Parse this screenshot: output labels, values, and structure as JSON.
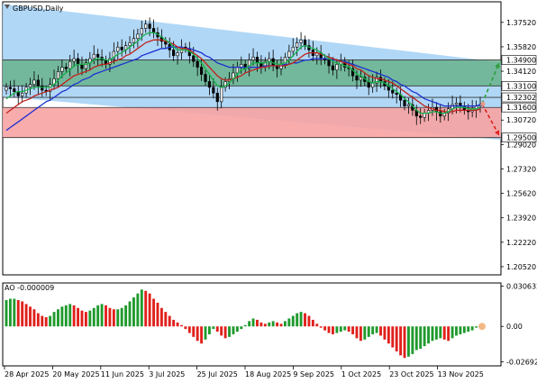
{
  "chart_data": {
    "type": "candlestick",
    "symbol_label": "GBPUSD,Daily",
    "price_axis": {
      "ticks": [
        "1.37520",
        "1.35820",
        "1.34120",
        "1.32420",
        "1.30720",
        "1.29020",
        "1.27320",
        "1.25620",
        "1.23920",
        "1.22220",
        "1.20520"
      ],
      "ylim": [
        1.1995,
        1.3895
      ]
    },
    "price_levels": [
      {
        "value": 1.349,
        "label": "1.34900",
        "color": "#2e8b57"
      },
      {
        "value": 1.331,
        "label": "1.33100",
        "color": "#2e8b57"
      },
      {
        "value": 1.323,
        "label": "1.32302",
        "color": "#4a90d9"
      },
      {
        "value": 1.316,
        "label": "1.31600",
        "color": "#cc3333"
      },
      {
        "value": 1.295,
        "label": "1.29500",
        "color": "#cc3333"
      }
    ],
    "zones": {
      "green_zone": [
        1.331,
        1.349
      ],
      "red_zone": [
        1.295,
        1.316
      ],
      "blue_channel": {
        "upper_start": 1.388,
        "upper_end": 1.3475,
        "lower_start": 1.3235,
        "lower_end": 1.2935
      }
    },
    "x_axis_labels": [
      "28 Apr 2025",
      "20 May 2025",
      "11 Jun 2025",
      "3 Jul 2025",
      "25 Jul 2025",
      "18 Aug 2025",
      "9 Sep 2025",
      "1 Oct 2025",
      "23 Oct 2025",
      "13 Nov 2025"
    ],
    "closes": [
      1.33,
      1.329,
      1.327,
      1.324,
      1.326,
      1.33,
      1.332,
      1.335,
      1.331,
      1.328,
      1.327,
      1.332,
      1.336,
      1.341,
      1.344,
      1.343,
      1.348,
      1.35,
      1.346,
      1.343,
      1.347,
      1.35,
      1.353,
      1.351,
      1.349,
      1.346,
      1.35,
      1.355,
      1.358,
      1.356,
      1.359,
      1.361,
      1.364,
      1.367,
      1.371,
      1.374,
      1.371,
      1.368,
      1.365,
      1.362,
      1.36,
      1.356,
      1.352,
      1.354,
      1.358,
      1.357,
      1.352,
      1.348,
      1.344,
      1.339,
      1.334,
      1.33,
      1.326,
      1.32,
      1.33,
      1.334,
      1.336,
      1.34,
      1.344,
      1.346,
      1.343,
      1.349,
      1.351,
      1.347,
      1.344,
      1.348,
      1.35,
      1.345,
      1.343,
      1.346,
      1.351,
      1.355,
      1.358,
      1.361,
      1.363,
      1.359,
      1.356,
      1.352,
      1.354,
      1.35,
      1.349,
      1.345,
      1.342,
      1.346,
      1.348,
      1.344,
      1.343,
      1.338,
      1.335,
      1.337,
      1.334,
      1.33,
      1.333,
      1.337,
      1.334,
      1.331,
      1.328,
      1.326,
      1.325,
      1.321,
      1.317,
      1.318,
      1.314,
      1.31,
      1.309,
      1.312,
      1.314,
      1.316,
      1.313,
      1.31,
      1.312,
      1.315,
      1.318,
      1.319,
      1.317,
      1.314,
      1.313,
      1.315,
      1.317,
      1.318
    ],
    "ma_fast": [
      1.322,
      1.324,
      1.326,
      1.327,
      1.327,
      1.328,
      1.329,
      1.33,
      1.33,
      1.33,
      1.33,
      1.33,
      1.332,
      1.335,
      1.338,
      1.34,
      1.342,
      1.345,
      1.346,
      1.346,
      1.346,
      1.347,
      1.349,
      1.35,
      1.35,
      1.349,
      1.349,
      1.351,
      1.353,
      1.354,
      1.356,
      1.358,
      1.36,
      1.362,
      1.365,
      1.367,
      1.368,
      1.368,
      1.367,
      1.365,
      1.363,
      1.361,
      1.358,
      1.356,
      1.356,
      1.356,
      1.355,
      1.353,
      1.35,
      1.347,
      1.343,
      1.339,
      1.335,
      1.331,
      1.33,
      1.331,
      1.333,
      1.336,
      1.339,
      1.342,
      1.343,
      1.345,
      1.347,
      1.347,
      1.347,
      1.347,
      1.348,
      1.347,
      1.346,
      1.346,
      1.347,
      1.349,
      1.352,
      1.355,
      1.358,
      1.359,
      1.358,
      1.357,
      1.356,
      1.354,
      1.352,
      1.35,
      1.348,
      1.347,
      1.346,
      1.345,
      1.344,
      1.342,
      1.339,
      1.338,
      1.336,
      1.334,
      1.333,
      1.334,
      1.334,
      1.333,
      1.331,
      1.329,
      1.327,
      1.325,
      1.322,
      1.32,
      1.317,
      1.314,
      1.312,
      1.312,
      1.312,
      1.313,
      1.313,
      1.312,
      1.312,
      1.313,
      1.315,
      1.316,
      1.316,
      1.316,
      1.315,
      1.315,
      1.315,
      1.316
    ],
    "ma_mid": [
      1.312,
      1.314,
      1.316,
      1.318,
      1.32,
      1.321,
      1.322,
      1.324,
      1.325,
      1.326,
      1.327,
      1.328,
      1.329,
      1.33,
      1.332,
      1.334,
      1.336,
      1.338,
      1.339,
      1.34,
      1.341,
      1.342,
      1.344,
      1.345,
      1.346,
      1.346,
      1.347,
      1.348,
      1.349,
      1.35,
      1.352,
      1.353,
      1.355,
      1.357,
      1.359,
      1.361,
      1.362,
      1.363,
      1.363,
      1.363,
      1.362,
      1.361,
      1.36,
      1.358,
      1.357,
      1.357,
      1.356,
      1.354,
      1.352,
      1.35,
      1.347,
      1.344,
      1.341,
      1.338,
      1.336,
      1.335,
      1.335,
      1.336,
      1.337,
      1.338,
      1.34,
      1.341,
      1.342,
      1.343,
      1.344,
      1.344,
      1.345,
      1.345,
      1.345,
      1.345,
      1.345,
      1.346,
      1.347,
      1.349,
      1.351,
      1.353,
      1.354,
      1.354,
      1.354,
      1.353,
      1.352,
      1.351,
      1.35,
      1.349,
      1.348,
      1.347,
      1.346,
      1.345,
      1.343,
      1.342,
      1.34,
      1.338,
      1.337,
      1.336,
      1.336,
      1.335,
      1.334,
      1.333,
      1.331,
      1.329,
      1.327,
      1.325,
      1.323,
      1.321,
      1.319,
      1.317,
      1.316,
      1.315,
      1.314,
      1.314,
      1.313,
      1.313,
      1.313,
      1.314,
      1.314,
      1.314,
      1.314,
      1.314,
      1.314,
      1.315
    ],
    "ma_slow": [
      1.3,
      1.302,
      1.304,
      1.306,
      1.308,
      1.31,
      1.312,
      1.314,
      1.316,
      1.318,
      1.32,
      1.321,
      1.323,
      1.325,
      1.327,
      1.328,
      1.33,
      1.332,
      1.333,
      1.335,
      1.336,
      1.337,
      1.339,
      1.34,
      1.341,
      1.342,
      1.343,
      1.344,
      1.345,
      1.346,
      1.347,
      1.348,
      1.349,
      1.35,
      1.352,
      1.353,
      1.354,
      1.355,
      1.356,
      1.357,
      1.357,
      1.358,
      1.358,
      1.358,
      1.358,
      1.357,
      1.357,
      1.356,
      1.355,
      1.354,
      1.352,
      1.351,
      1.349,
      1.347,
      1.346,
      1.345,
      1.344,
      1.344,
      1.344,
      1.344,
      1.344,
      1.344,
      1.344,
      1.344,
      1.344,
      1.345,
      1.345,
      1.345,
      1.345,
      1.345,
      1.346,
      1.346,
      1.347,
      1.347,
      1.348,
      1.349,
      1.349,
      1.35,
      1.35,
      1.35,
      1.35,
      1.35,
      1.349,
      1.349,
      1.348,
      1.348,
      1.347,
      1.346,
      1.345,
      1.344,
      1.343,
      1.342,
      1.341,
      1.34,
      1.339,
      1.338,
      1.337,
      1.335,
      1.334,
      1.332,
      1.331,
      1.329,
      1.327,
      1.326,
      1.324,
      1.322,
      1.321,
      1.32,
      1.319,
      1.318,
      1.317,
      1.317,
      1.317,
      1.317,
      1.317,
      1.317,
      1.317,
      1.317,
      1.317,
      1.318
    ],
    "forecast_arrows": [
      {
        "label": "up",
        "from": 1.3185,
        "to": 1.347,
        "color": "#2e9e3a"
      },
      {
        "label": "down",
        "from": 1.3185,
        "to": 1.2965,
        "color": "#e0201b"
      }
    ],
    "oscillator": {
      "name": "AO",
      "label": "AO -0.000009",
      "ticks": [
        "0.030632",
        "0.00",
        "-0.026929"
      ],
      "ylim": [
        -0.03,
        0.033
      ],
      "values": [
        0.02,
        0.021,
        0.021,
        0.02,
        0.019,
        0.017,
        0.015,
        0.013,
        0.01,
        0.008,
        0.007,
        0.008,
        0.011,
        0.013,
        0.015,
        0.016,
        0.017,
        0.016,
        0.014,
        0.012,
        0.011,
        0.012,
        0.014,
        0.016,
        0.017,
        0.016,
        0.014,
        0.013,
        0.013,
        0.014,
        0.016,
        0.019,
        0.022,
        0.025,
        0.028,
        0.027,
        0.025,
        0.021,
        0.018,
        0.014,
        0.011,
        0.008,
        0.005,
        0.003,
        0.001,
        -0.002,
        -0.005,
        -0.008,
        -0.011,
        -0.013,
        -0.01,
        -0.006,
        -0.002,
        -0.004,
        -0.007,
        -0.009,
        -0.008,
        -0.006,
        -0.004,
        -0.002,
        0.001,
        0.004,
        0.006,
        0.005,
        0.003,
        0.002,
        0.003,
        0.004,
        0.003,
        0.002,
        0.004,
        0.006,
        0.008,
        0.01,
        0.011,
        0.01,
        0.008,
        0.005,
        0.002,
        -0.001,
        -0.003,
        -0.005,
        -0.006,
        -0.005,
        -0.004,
        -0.003,
        -0.004,
        -0.006,
        -0.009,
        -0.011,
        -0.01,
        -0.008,
        -0.006,
        -0.005,
        -0.007,
        -0.01,
        -0.013,
        -0.016,
        -0.019,
        -0.022,
        -0.024,
        -0.023,
        -0.021,
        -0.018,
        -0.017,
        -0.015,
        -0.013,
        -0.011,
        -0.01,
        -0.009,
        -0.01,
        -0.011,
        -0.009,
        -0.007,
        -0.006,
        -0.005,
        -0.004,
        -0.003,
        -0.001,
        0.0
      ]
    }
  }
}
